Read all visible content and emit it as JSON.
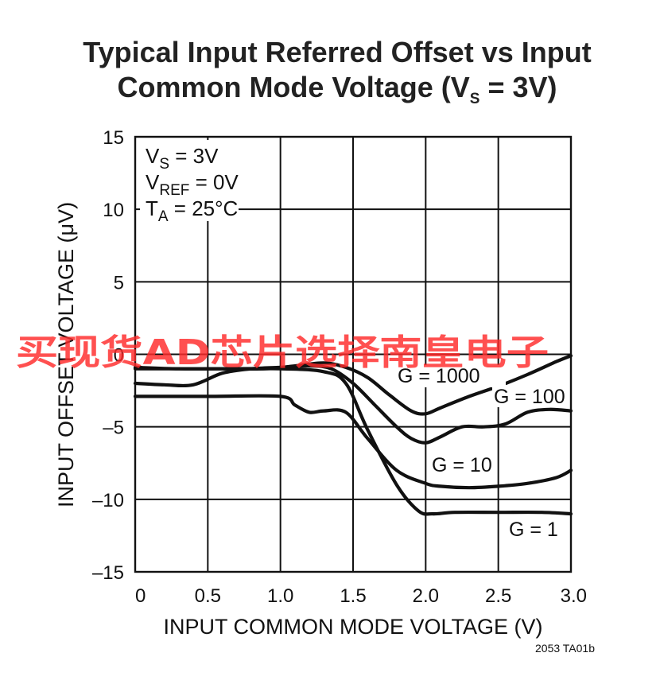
{
  "chart_data": {
    "type": "line",
    "title_line1": "Typical Input Referred Offset vs Input",
    "title_line2_main": "Common Mode Voltage (V",
    "title_line2_sub": "S",
    "title_line2_end": " = 3V)",
    "xlabel": "INPUT COMMON MODE VOLTAGE (V)",
    "ylabel": "INPUT OFFSET VOLTAGE (μV)",
    "xlim": [
      0,
      3
    ],
    "ylim": [
      -15,
      15
    ],
    "x_ticks": [
      "0",
      "0.5",
      "1.0",
      "1.5",
      "2.0",
      "2.5",
      "3.0"
    ],
    "y_ticks": [
      "15",
      "10",
      "5",
      "0",
      "–5",
      "–10",
      "–15"
    ],
    "x_tick_values": [
      0,
      0.5,
      1.0,
      1.5,
      2.0,
      2.5,
      3.0
    ],
    "y_tick_values": [
      15,
      10,
      5,
      0,
      -5,
      -10,
      -15
    ],
    "grid": true,
    "conditions": {
      "vs_main": "V",
      "vs_sub": "S",
      "vs_end": " = 3V",
      "vref_main": "V",
      "vref_sub": "REF",
      "vref_end": " = 0V",
      "ta_main": "T",
      "ta_sub": "A",
      "ta_end": " = 25°C"
    },
    "series": [
      {
        "name": "G = 1000",
        "x": [
          0,
          0.3,
          0.6,
          0.9,
          1.1,
          1.3,
          1.45,
          1.6,
          1.75,
          1.9,
          2.0,
          2.1,
          2.3,
          2.5,
          2.7,
          2.9,
          3.0
        ],
        "y": [
          -0.9,
          -1.0,
          -1.0,
          -1.0,
          -0.8,
          -0.6,
          -0.9,
          -1.6,
          -2.8,
          -3.9,
          -4.1,
          -3.7,
          -2.9,
          -2.2,
          -1.4,
          -0.5,
          -0.1
        ]
      },
      {
        "name": "G = 100",
        "x": [
          0,
          0.2,
          0.4,
          0.6,
          0.8,
          1.0,
          1.2,
          1.35,
          1.5,
          1.65,
          1.8,
          1.9,
          2.0,
          2.1,
          2.25,
          2.4,
          2.55,
          2.7,
          2.85,
          3.0
        ],
        "y": [
          -2.0,
          -2.1,
          -2.1,
          -1.3,
          -1.0,
          -0.9,
          -0.8,
          -1.0,
          -2.0,
          -3.5,
          -5.0,
          -5.8,
          -6.1,
          -5.7,
          -5.0,
          -5.0,
          -4.8,
          -4.0,
          -3.8,
          -3.9
        ]
      },
      {
        "name": "G = 10",
        "x": [
          0,
          0.5,
          1.0,
          1.1,
          1.2,
          1.3,
          1.45,
          1.6,
          1.8,
          2.0,
          2.1,
          2.3,
          2.5,
          2.7,
          2.9,
          3.0
        ],
        "y": [
          -2.9,
          -2.9,
          -2.9,
          -3.5,
          -4.0,
          -3.9,
          -4.0,
          -5.8,
          -8.0,
          -8.9,
          -9.1,
          -9.2,
          -9.1,
          -8.9,
          -8.5,
          -8.0
        ]
      },
      {
        "name": "G = 1",
        "x": [
          0,
          0.5,
          1.0,
          1.3,
          1.45,
          1.6,
          1.8,
          1.95,
          2.05,
          2.2,
          2.5,
          2.8,
          3.0
        ],
        "y": [
          -1.0,
          -1.0,
          -1.0,
          -1.2,
          -2.0,
          -5.2,
          -9.0,
          -10.8,
          -11.0,
          -10.9,
          -10.9,
          -10.9,
          -11.0
        ]
      }
    ],
    "series_labels": {
      "g1000": "G = 1000",
      "g100": "G = 100",
      "g10": "G = 10",
      "g1": "G = 1"
    },
    "figure_id": "2053 TA01b"
  },
  "watermark": "买现货AD芯片选择南皇电子"
}
